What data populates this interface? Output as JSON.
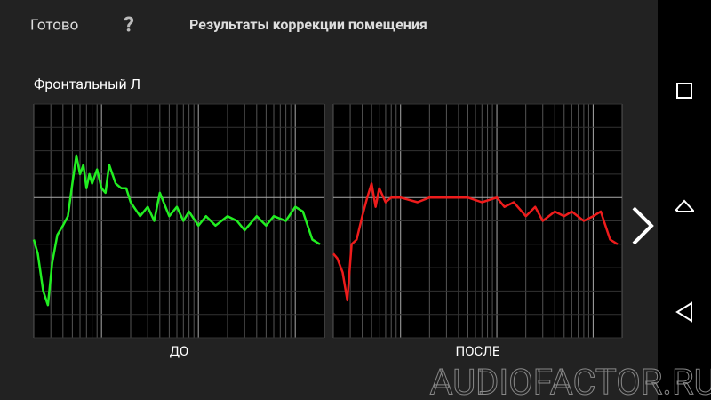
{
  "header": {
    "done": "Готово",
    "help": "?",
    "title": "Результаты коррекции помещения"
  },
  "section": "Фронтальный Л",
  "watermark": "AUDIOFACTOR.RU",
  "chart_data": [
    {
      "type": "line",
      "label": "ДО",
      "xscale": "log",
      "grid": true,
      "xlim": [
        20,
        20000
      ],
      "ylim": [
        -30,
        20
      ],
      "xticks": [
        20,
        30,
        40,
        50,
        60,
        70,
        80,
        90,
        100,
        200,
        300,
        400,
        500,
        600,
        700,
        800,
        900,
        1000,
        2000,
        3000,
        4000,
        5000,
        6000,
        7000,
        8000,
        9000,
        10000,
        20000
      ],
      "yticks": [
        -30,
        -25,
        -20,
        -15,
        -10,
        -5,
        0,
        5,
        10,
        15,
        20
      ],
      "x": [
        20,
        22,
        25,
        28,
        31,
        35,
        40,
        45,
        50,
        55,
        60,
        65,
        70,
        75,
        80,
        90,
        100,
        110,
        120,
        140,
        160,
        180,
        200,
        250,
        300,
        350,
        400,
        500,
        600,
        700,
        800,
        1000,
        1200,
        1500,
        2000,
        2500,
        3000,
        4000,
        5000,
        6000,
        8000,
        10000,
        12000,
        15000,
        18000
      ],
      "series": [
        {
          "color": "#22ee22",
          "values": [
            -9,
            -12,
            -20,
            -23,
            -14,
            -8,
            -6,
            -4,
            3,
            9,
            5,
            7,
            2,
            5,
            3,
            6,
            2,
            1,
            7,
            3,
            2,
            2,
            -1,
            -4,
            -2,
            -5,
            1,
            -4,
            -2,
            -5,
            -3,
            -6,
            -4,
            -6,
            -4,
            -5,
            -7,
            -4,
            -6,
            -4,
            -5,
            -2,
            -3,
            -9,
            -10
          ]
        }
      ]
    },
    {
      "type": "line",
      "label": "ПОСЛЕ",
      "xscale": "log",
      "grid": true,
      "xlim": [
        20,
        20000
      ],
      "ylim": [
        -30,
        20
      ],
      "xticks": [
        20,
        30,
        40,
        50,
        60,
        70,
        80,
        90,
        100,
        200,
        300,
        400,
        500,
        600,
        700,
        800,
        900,
        1000,
        2000,
        3000,
        4000,
        5000,
        6000,
        7000,
        8000,
        9000,
        10000,
        20000
      ],
      "yticks": [
        -30,
        -25,
        -20,
        -15,
        -10,
        -5,
        0,
        5,
        10,
        15,
        20
      ],
      "x": [
        20,
        22,
        25,
        28,
        31,
        35,
        40,
        45,
        50,
        55,
        60,
        70,
        80,
        100,
        150,
        200,
        300,
        500,
        700,
        1000,
        1200,
        1500,
        2000,
        2500,
        3000,
        4000,
        5000,
        6000,
        8000,
        10000,
        12000,
        15000,
        18000
      ],
      "series": [
        {
          "color": "#ee1c1c",
          "values": [
            -12,
            -13,
            -16,
            -22,
            -10,
            -9,
            -4,
            0,
            3,
            -2,
            2,
            -1,
            0,
            0,
            -1,
            0,
            0,
            0,
            -1,
            0,
            -2,
            -1,
            -4,
            -2,
            -5,
            -3,
            -4,
            -3,
            -5,
            -4,
            -3,
            -9,
            -10
          ]
        }
      ]
    }
  ]
}
